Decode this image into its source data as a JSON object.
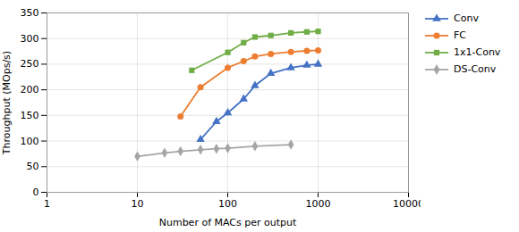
{
  "chart_data": {
    "type": "line",
    "xlabel": "Number of MACs per output",
    "ylabel": "Throughput (MOps/s)",
    "log": "x",
    "xlim": [
      1,
      10000
    ],
    "ylim": [
      0,
      350
    ],
    "xticks": [
      1,
      10,
      100,
      1000,
      10000
    ],
    "yticks": [
      0,
      50,
      100,
      150,
      200,
      250,
      300,
      350
    ],
    "grid": true,
    "legend": "right",
    "series": [
      {
        "name": "Conv",
        "color": "#4472C4",
        "marker": "triangle",
        "x": [
          50,
          75,
          100,
          150,
          200,
          300,
          500,
          750,
          1000
        ],
        "values": [
          103,
          138,
          155,
          182,
          208,
          232,
          243,
          248,
          250
        ]
      },
      {
        "name": "FC",
        "color": "#ED7D31",
        "marker": "circle",
        "x": [
          30,
          50,
          100,
          150,
          200,
          300,
          500,
          750,
          1000
        ],
        "values": [
          148,
          205,
          243,
          256,
          265,
          270,
          274,
          276,
          277
        ]
      },
      {
        "name": "1x1-Conv",
        "color": "#70AD47",
        "marker": "square",
        "x": [
          40,
          100,
          150,
          200,
          300,
          500,
          750,
          1000
        ],
        "values": [
          238,
          273,
          292,
          303,
          306,
          311,
          313,
          314
        ]
      },
      {
        "name": "DS-Conv",
        "color": "#A5A5A5",
        "marker": "diamond",
        "x": [
          10,
          20,
          30,
          50,
          75,
          100,
          200,
          500
        ],
        "values": [
          70,
          77,
          80,
          83,
          85,
          86,
          90,
          93
        ]
      }
    ]
  }
}
